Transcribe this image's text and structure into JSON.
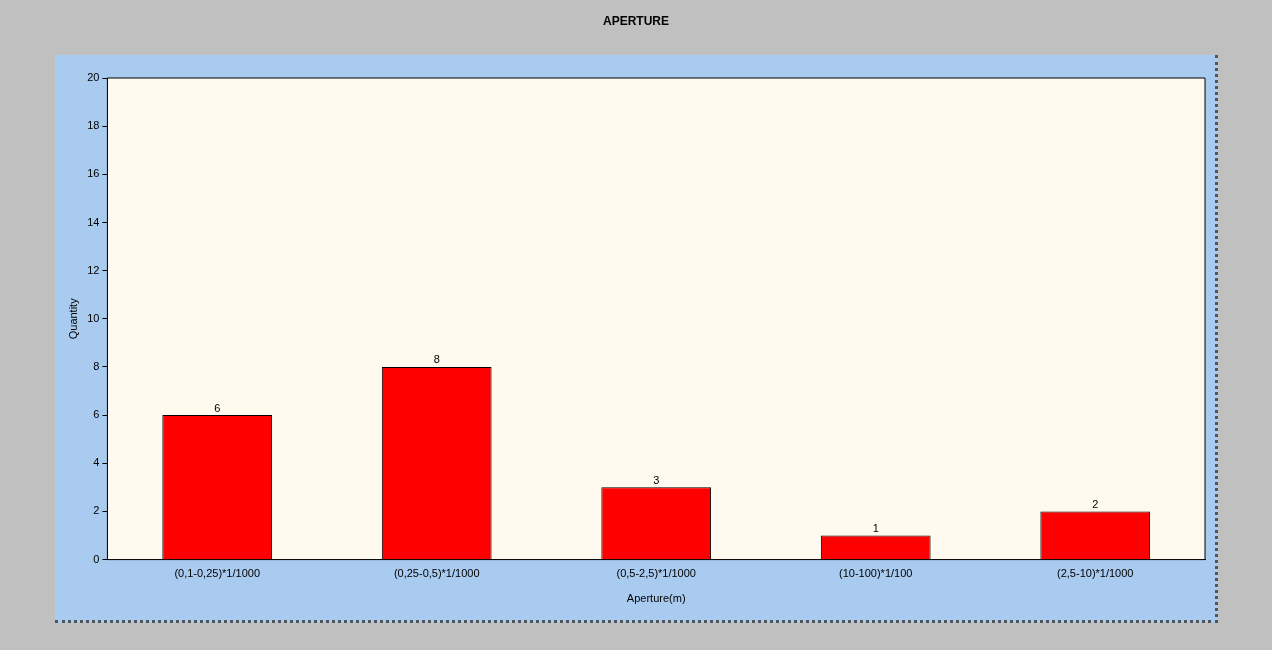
{
  "chart_data": {
    "type": "bar",
    "title": "APERTURE",
    "xlabel": "Aperture(m)",
    "ylabel": "Quantity",
    "categories": [
      "(0,1-0,25)*1/1000",
      "(0,25-0,5)*1/1000",
      "(0,5-2,5)*1/1000",
      "(10-100)*1/100",
      "(2,5-10)*1/1000"
    ],
    "values": [
      6,
      8,
      3,
      1,
      2
    ],
    "color": "#ff0000",
    "ylim": [
      0,
      20
    ],
    "yticks": [
      0,
      2,
      4,
      6,
      8,
      10,
      12,
      14,
      16,
      18,
      20
    ],
    "legend": false,
    "data_labels": true
  }
}
